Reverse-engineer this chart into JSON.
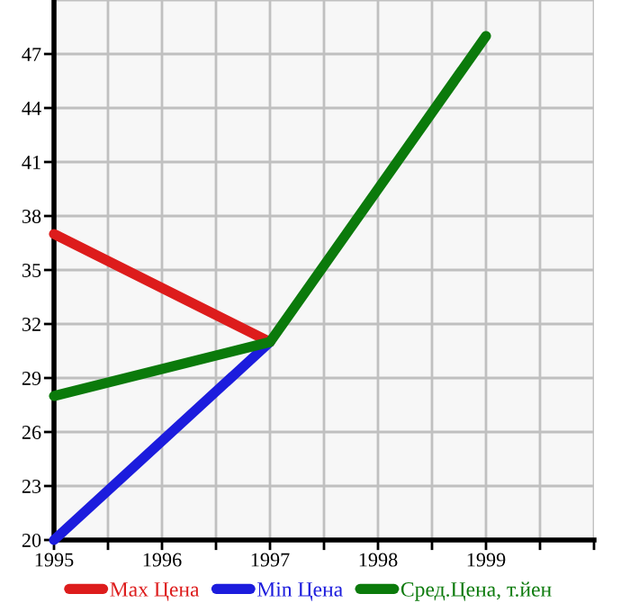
{
  "chart_data": {
    "type": "line",
    "x": [
      1995,
      1997,
      1999
    ],
    "series": [
      {
        "name": "Max Цена",
        "color": "#dd1c1c",
        "values": [
          37,
          31,
          null
        ]
      },
      {
        "name": "Min Цена",
        "color": "#1c1cdd",
        "values": [
          20,
          31,
          null
        ]
      },
      {
        "name": "Сред.Цена, т.йен",
        "color": "#0b7a0b",
        "values": [
          28,
          31,
          48
        ]
      }
    ],
    "xlim": [
      1995,
      2000
    ],
    "xticks": [
      1995,
      {
        "value": 1995.5,
        "label": null
      },
      1996,
      {
        "value": 1996.5,
        "label": null
      },
      1997,
      {
        "value": 1997.5,
        "label": null
      },
      1998,
      {
        "value": 1998.5,
        "label": null
      },
      1999,
      {
        "value": 1999.5,
        "label": null
      },
      {
        "value": 2000,
        "label": null
      }
    ],
    "ylim": [
      20,
      50
    ],
    "yticks": [
      20,
      23,
      26,
      29,
      32,
      35,
      38,
      41,
      44,
      47
    ],
    "grid": true,
    "legend": "bottom",
    "marker": "none",
    "line_style": "solid"
  }
}
